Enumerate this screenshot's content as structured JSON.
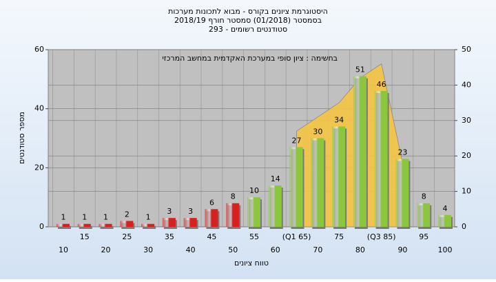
{
  "chart_data": {
    "type": "bar",
    "title": [
      "היסטוגרמת ציונים בקורס - מבוא לתכונות מערכות",
      "בסמסטר  (01/2018)  סמסטר חורף 2018/19",
      "סטודנטים רשומים - 293"
    ],
    "annotation": "בחשימה : ציון סופי במערכת האקדמית במחשב המרכזי",
    "x_label": "טווח ציונים",
    "y_label": "מספר סטודנטים",
    "categories": [
      "10",
      "15",
      "20",
      "25",
      "30",
      "35",
      "40",
      "45",
      "50",
      "55",
      "60",
      "(Q1 65)",
      "70",
      "75",
      "80",
      "(Q3 85)",
      "90",
      "95",
      "100"
    ],
    "values": [
      1,
      1,
      1,
      2,
      1,
      3,
      3,
      6,
      8,
      10,
      14,
      27,
      30,
      34,
      51,
      46,
      23,
      8,
      4
    ],
    "colors": [
      "#d92020",
      "#d92020",
      "#d92020",
      "#d92020",
      "#d92020",
      "#d92020",
      "#d92020",
      "#d92020",
      "#d92020",
      "#8cc63f",
      "#8cc63f",
      "#8cc63f",
      "#8cc63f",
      "#8cc63f",
      "#8cc63f",
      "#8cc63f",
      "#8cc63f",
      "#8cc63f",
      "#8cc63f"
    ],
    "series": [
      {
        "type": "area",
        "color": "#f5c542",
        "axis": "y2",
        "values": [
          null,
          null,
          null,
          null,
          null,
          null,
          null,
          null,
          null,
          null,
          null,
          27,
          31,
          35,
          42,
          46,
          18,
          null,
          null
        ]
      }
    ],
    "ylim": [
      0,
      60
    ],
    "yticks": [
      0,
      20,
      40,
      60
    ],
    "y2lim": [
      0,
      50
    ],
    "y2ticks": [
      0,
      10,
      20,
      30,
      40,
      50
    ],
    "grid": true
  }
}
